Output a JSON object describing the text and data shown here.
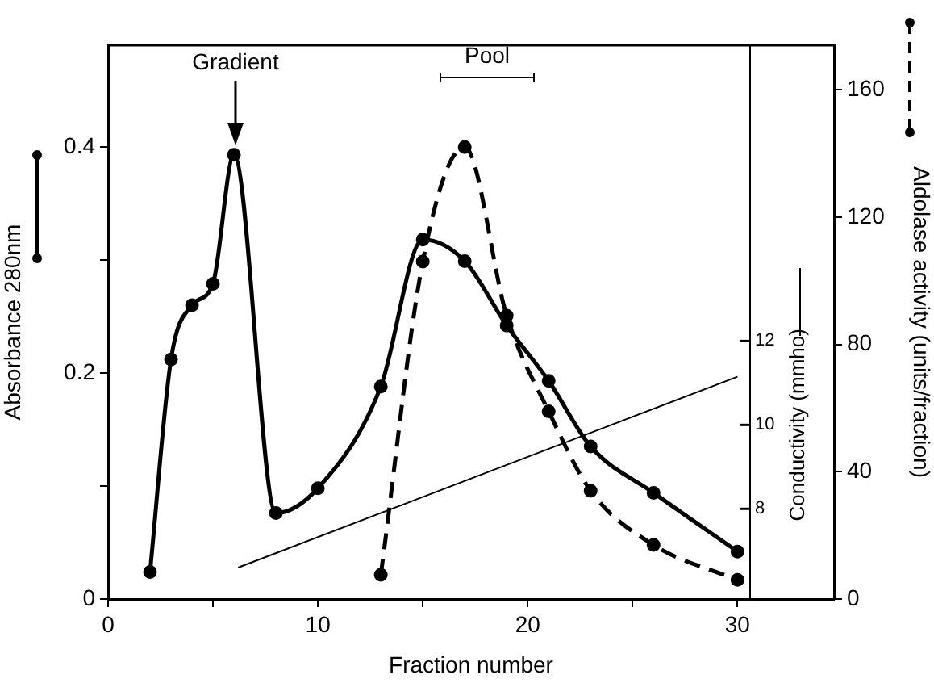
{
  "chart_data": {
    "type": "line",
    "xlabel": "Fraction number",
    "ylabel": "Absorbance 280nm",
    "y2label": "Aldolase activity (units/fraction)",
    "y3label": "Conductivity (mmho)",
    "xlim": [
      0,
      34.6
    ],
    "xticks": [
      0,
      {
        "value": 5,
        "label": null
      },
      10,
      {
        "value": 15,
        "label": null
      },
      20,
      {
        "value": 25,
        "label": null
      },
      30
    ],
    "ylim": [
      0,
      0.49
    ],
    "yticks": [
      0,
      {
        "value": 0.1,
        "label": null
      },
      0.2,
      {
        "value": 0.3,
        "label": null
      },
      0.4
    ],
    "y2lim": [
      0,
      174
    ],
    "y2ticks": [
      0,
      40,
      80,
      120,
      160
    ],
    "y3lim": [
      5.85,
      19.05
    ],
    "y3ticks": [
      8,
      10,
      12
    ],
    "series": [
      {
        "color": "#000000",
        "marker": "circle",
        "line_style": "solid",
        "x": [
          2,
          3,
          4,
          5,
          6,
          8,
          10,
          13,
          15,
          17,
          19,
          21,
          23,
          26,
          30
        ],
        "values": [
          0.024,
          0.212,
          0.26,
          0.279,
          0.393,
          0.076,
          0.098,
          0.188,
          0.318,
          0.299,
          0.242,
          0.193,
          0.135,
          0.094,
          0.042
        ]
      },
      {
        "color": "#000000",
        "marker": "circle",
        "line_style": "dashed",
        "axis": "y2",
        "x": [
          13,
          15,
          17,
          19,
          21,
          23,
          26,
          30
        ],
        "values": [
          7.6,
          106,
          142,
          89,
          59,
          34,
          17,
          6
        ]
      },
      {
        "color": "#000000",
        "marker": "none",
        "line_style": "solid",
        "axis": "y3",
        "x": [
          6.2,
          30
        ],
        "values": [
          6.6,
          11.15
        ]
      }
    ],
    "annotations": [
      "Gradient",
      "Pool"
    ],
    "grid": false,
    "legend": false
  }
}
